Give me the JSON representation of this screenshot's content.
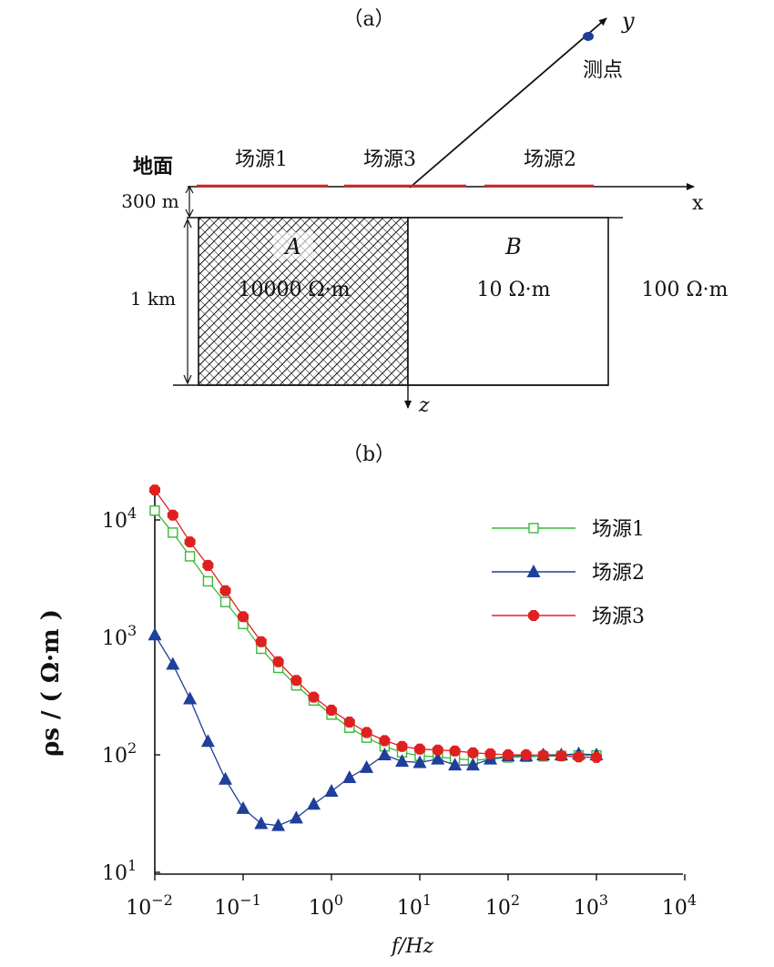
{
  "panel_a": {
    "label": "（a）",
    "y_axis_label": "y",
    "x_axis_label": "x",
    "z_axis_label": "z",
    "measure_point_label": "测点",
    "ground_label": "地面",
    "source1_label": "场源1",
    "source2_label": "场源2",
    "source3_label": "场源3",
    "depth_label": "300 m",
    "thickness_label": "1 km",
    "block_a_letter": "A",
    "block_a_resistivity": "10000 Ω·m",
    "block_b_letter": "B",
    "block_b_resistivity": "10 Ω·m",
    "background_resistivity": "100 Ω·m",
    "colors": {
      "source_line": "#e02020",
      "measure_point": "#1f3f9a"
    }
  },
  "panel_b": {
    "label": "（b）"
  },
  "chart_data": {
    "type": "line",
    "xlabel": "f/Hz",
    "ylabel": "ρs / ( Ω·m )",
    "x_scale": "log",
    "y_scale": "log",
    "xlim": [
      0.01,
      10000
    ],
    "ylim": [
      10,
      30000
    ],
    "x_ticks": [
      {
        "value": 0.01,
        "base": "10",
        "exp": "−2"
      },
      {
        "value": 0.1,
        "base": "10",
        "exp": "−1"
      },
      {
        "value": 1,
        "base": "10",
        "exp": "0"
      },
      {
        "value": 10,
        "base": "10",
        "exp": "1"
      },
      {
        "value": 100,
        "base": "10",
        "exp": "2"
      },
      {
        "value": 1000,
        "base": "10",
        "exp": "3"
      },
      {
        "value": 10000,
        "base": "10",
        "exp": "4"
      }
    ],
    "y_ticks": [
      {
        "value": 10,
        "base": "10",
        "exp": "1"
      },
      {
        "value": 100,
        "base": "10",
        "exp": "2"
      },
      {
        "value": 1000,
        "base": "10",
        "exp": "3"
      },
      {
        "value": 10000,
        "base": "10",
        "exp": "4"
      }
    ],
    "legend_position": "top-right",
    "grid": false,
    "series": [
      {
        "name": "场源1",
        "color": "#3cb83c",
        "marker": "open-square",
        "x": [
          0.01,
          0.016,
          0.025,
          0.04,
          0.063,
          0.1,
          0.16,
          0.25,
          0.4,
          0.63,
          1.0,
          1.6,
          2.5,
          4.0,
          6.3,
          10,
          16,
          25,
          40,
          63,
          100,
          160,
          250,
          400,
          630,
          1000
        ],
        "y": [
          12000,
          7800,
          4900,
          3000,
          2000,
          1300,
          800,
          550,
          390,
          290,
          220,
          170,
          140,
          118,
          105,
          98,
          96,
          93,
          90,
          92,
          95,
          96,
          97,
          98,
          99,
          99
        ]
      },
      {
        "name": "场源2",
        "color": "#1f3f9a",
        "marker": "filled-triangle",
        "x": [
          0.01,
          0.016,
          0.025,
          0.04,
          0.063,
          0.1,
          0.16,
          0.25,
          0.4,
          0.63,
          1.0,
          1.6,
          2.5,
          4.0,
          6.3,
          10,
          16,
          25,
          40,
          63,
          100,
          160,
          250,
          400,
          630,
          1000
        ],
        "y": [
          1050,
          590,
          300,
          130,
          62,
          35,
          26,
          25,
          29,
          38,
          49,
          64,
          78,
          100,
          88,
          86,
          92,
          82,
          82,
          92,
          98,
          98,
          100,
          100,
          102,
          100
        ]
      },
      {
        "name": "场源3",
        "color": "#e02020",
        "marker": "filled-octagon",
        "x": [
          0.01,
          0.016,
          0.025,
          0.04,
          0.063,
          0.1,
          0.16,
          0.25,
          0.4,
          0.63,
          1.0,
          1.6,
          2.5,
          4.0,
          6.3,
          10,
          16,
          25,
          40,
          63,
          100,
          160,
          250,
          400,
          630,
          1000
        ],
        "y": [
          18000,
          11000,
          6500,
          4100,
          2500,
          1500,
          920,
          620,
          430,
          310,
          240,
          190,
          155,
          132,
          118,
          112,
          110,
          108,
          104,
          102,
          100,
          100,
          99,
          98,
          96,
          95
        ]
      }
    ]
  }
}
